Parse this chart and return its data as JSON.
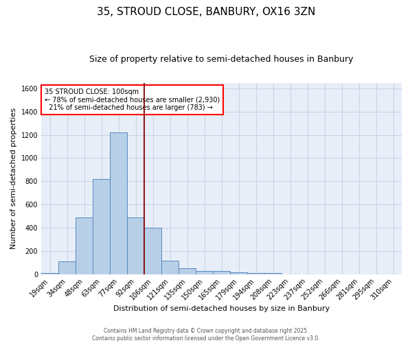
{
  "title1": "35, STROUD CLOSE, BANBURY, OX16 3ZN",
  "title2": "Size of property relative to semi-detached houses in Banbury",
  "xlabel": "Distribution of semi-detached houses by size in Banbury",
  "ylabel": "Number of semi-detached properties",
  "bin_labels": [
    "19sqm",
    "34sqm",
    "48sqm",
    "63sqm",
    "77sqm",
    "92sqm",
    "106sqm",
    "121sqm",
    "135sqm",
    "150sqm",
    "165sqm",
    "179sqm",
    "194sqm",
    "208sqm",
    "223sqm",
    "237sqm",
    "252sqm",
    "266sqm",
    "281sqm",
    "295sqm",
    "310sqm"
  ],
  "bar_heights": [
    10,
    110,
    490,
    820,
    1220,
    490,
    400,
    115,
    50,
    30,
    30,
    15,
    10,
    10,
    0,
    0,
    0,
    0,
    0,
    0,
    0
  ],
  "bar_color": "#b8cfe8",
  "bar_edge_color": "#5589bf",
  "grid_color": "#c8d4e8",
  "background_color": "#e8eef8",
  "vline_x_index": 5.5,
  "vline_color": "#8b1a1a",
  "annotation_text": "35 STROUD CLOSE: 100sqm\n← 78% of semi-detached houses are smaller (2,930)\n  21% of semi-detached houses are larger (783) →",
  "annotation_box_color": "white",
  "annotation_box_edge_color": "red",
  "ylim": [
    0,
    1650
  ],
  "yticks": [
    0,
    200,
    400,
    600,
    800,
    1000,
    1200,
    1400,
    1600
  ],
  "footer1": "Contains HM Land Registry data © Crown copyright and database right 2025.",
  "footer2": "Contains public sector information licensed under the Open Government Licence v3.0.",
  "title_fontsize": 11,
  "subtitle_fontsize": 9,
  "annotation_fontsize": 7,
  "axis_label_fontsize": 8,
  "tick_fontsize": 7
}
